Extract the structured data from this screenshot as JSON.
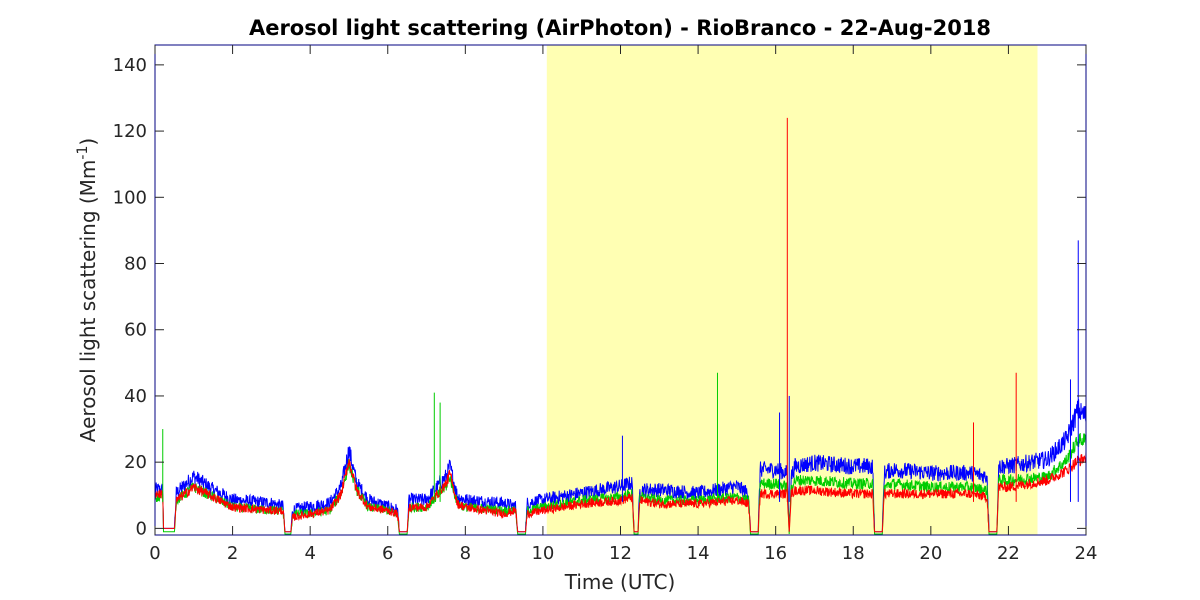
{
  "chart_data": {
    "type": "line",
    "title": "Aerosol light scattering (AirPhoton) - RioBranco - 22-Aug-2018",
    "xlabel": "Time (UTC)",
    "ylabel_main": "Aerosol light scattering (Mm",
    "ylabel_sup": "-1",
    "ylabel_close": ")",
    "xlim": [
      0,
      24
    ],
    "ylim": [
      -2,
      146
    ],
    "xticks": [
      "0",
      "2",
      "4",
      "6",
      "8",
      "10",
      "12",
      "14",
      "16",
      "18",
      "20",
      "22",
      "24"
    ],
    "yticks": [
      "0",
      "20",
      "40",
      "60",
      "80",
      "100",
      "120",
      "140"
    ],
    "grid": false,
    "daylight_shading": {
      "x_start": 10.1,
      "x_end": 22.75,
      "color": "#ffffb3"
    },
    "colors": {
      "blue": "#0000ff",
      "green": "#00cc00",
      "red": "#ff0000",
      "axis": "#262626",
      "frame": "#000080"
    },
    "series": [
      {
        "color_key": "blue",
        "x": [
          0,
          0.2,
          0.22,
          0.5,
          0.55,
          1.0,
          1.5,
          2.0,
          3.0,
          3.3,
          3.35,
          3.5,
          3.55,
          4.0,
          4.5,
          4.8,
          5.0,
          5.2,
          5.5,
          6.0,
          6.25,
          6.3,
          6.5,
          6.55,
          7.0,
          7.5,
          7.6,
          7.8,
          8.0,
          9.0,
          9.3,
          9.35,
          9.55,
          9.6,
          10.0,
          11.0,
          12.0,
          12.3,
          12.35,
          12.45,
          12.5,
          13.0,
          14.0,
          15.0,
          15.3,
          15.35,
          15.55,
          15.6,
          16.0,
          16.3,
          16.35,
          16.4,
          16.5,
          17.0,
          18.0,
          18.5,
          18.55,
          18.75,
          18.8,
          19.0,
          20.0,
          21.0,
          21.45,
          21.5,
          21.7,
          21.75,
          22.0,
          23.0,
          23.5,
          23.8,
          23.85,
          24.0
        ],
        "y": [
          11,
          11,
          0,
          0,
          10,
          15,
          11,
          8,
          7,
          6,
          -1,
          -1,
          5,
          6,
          7,
          12,
          23,
          13,
          8,
          6,
          5,
          -1,
          -1,
          8,
          8,
          15,
          18,
          9,
          8,
          7,
          6,
          -1,
          -1,
          7,
          8,
          10,
          12,
          13,
          -1,
          -1,
          11,
          11,
          10,
          12,
          10,
          -1,
          -1,
          17,
          17,
          16,
          -1,
          15,
          18,
          19,
          18,
          18,
          -1,
          -1,
          16,
          17,
          16,
          16,
          15,
          -1,
          -1,
          18,
          18,
          20,
          26,
          35,
          34,
          33
        ]
      },
      {
        "color_key": "green",
        "x": [
          0,
          0.2,
          0.22,
          0.5,
          0.55,
          1.0,
          1.5,
          2.0,
          3.0,
          3.3,
          3.35,
          3.5,
          3.55,
          4.0,
          4.5,
          4.8,
          5.0,
          5.2,
          5.5,
          6.0,
          6.25,
          6.3,
          6.5,
          6.55,
          7.0,
          7.5,
          7.6,
          7.8,
          8.0,
          9.0,
          9.3,
          9.35,
          9.55,
          9.6,
          10.0,
          11.0,
          12.0,
          12.3,
          12.35,
          12.45,
          12.5,
          13.0,
          14.0,
          15.0,
          15.3,
          15.35,
          15.55,
          15.6,
          16.0,
          16.3,
          16.35,
          16.4,
          16.5,
          17.0,
          18.0,
          18.5,
          18.55,
          18.75,
          18.8,
          19.0,
          20.0,
          21.0,
          21.45,
          21.5,
          21.7,
          21.75,
          22.0,
          23.0,
          23.5,
          23.8,
          23.85,
          24.0
        ],
        "y": [
          9,
          9,
          -1,
          -1,
          8,
          12,
          9,
          6,
          5,
          5,
          -2,
          -2,
          4,
          4,
          5,
          10,
          19,
          11,
          6,
          5,
          4,
          -2,
          -2,
          6,
          6,
          12,
          15,
          7,
          6,
          5,
          5,
          -2,
          -2,
          5,
          6,
          8,
          9,
          10,
          -2,
          -2,
          9,
          8,
          8,
          9,
          8,
          -2,
          -2,
          13,
          13,
          12,
          -2,
          12,
          14,
          14,
          13,
          13,
          -2,
          -2,
          12,
          13,
          12,
          12,
          11,
          -2,
          -2,
          14,
          14,
          15,
          20,
          26,
          26,
          26
        ]
      },
      {
        "color_key": "red",
        "x": [
          0,
          0.2,
          0.22,
          0.5,
          0.55,
          1.0,
          1.5,
          2.0,
          3.0,
          3.3,
          3.35,
          3.5,
          3.55,
          4.0,
          4.5,
          4.8,
          5.0,
          5.2,
          5.5,
          6.0,
          6.25,
          6.3,
          6.5,
          6.55,
          7.0,
          7.5,
          7.6,
          7.8,
          8.0,
          9.0,
          9.3,
          9.35,
          9.55,
          9.6,
          10.0,
          11.0,
          12.0,
          12.3,
          12.35,
          12.45,
          12.5,
          13.0,
          14.0,
          15.0,
          15.3,
          15.35,
          15.55,
          15.6,
          16.0,
          16.3,
          16.35,
          16.4,
          16.5,
          17.0,
          18.0,
          18.5,
          18.55,
          18.75,
          18.8,
          19.0,
          20.0,
          21.0,
          21.45,
          21.5,
          21.7,
          21.75,
          22.0,
          23.0,
          23.5,
          23.8,
          23.85,
          24.0
        ],
        "y": [
          10,
          10,
          0,
          0,
          8,
          12,
          9,
          6,
          5,
          5,
          -1,
          -1,
          3,
          4,
          5,
          10,
          20,
          11,
          6,
          5,
          4,
          -1,
          -1,
          6,
          6,
          13,
          16,
          7,
          6,
          4,
          5,
          -1,
          -1,
          4,
          5,
          7,
          8,
          9,
          -1,
          -1,
          8,
          7,
          7,
          8,
          7,
          -1,
          -1,
          10,
          10,
          10,
          -1,
          10,
          11,
          11,
          10,
          10,
          -1,
          -1,
          10,
          10,
          10,
          10,
          9,
          -1,
          -1,
          12,
          12,
          14,
          17,
          20,
          20,
          21
        ]
      }
    ],
    "spikes": [
      {
        "color_key": "green",
        "x": 0.2,
        "y": 30
      },
      {
        "color_key": "green",
        "x": 7.2,
        "y": 41
      },
      {
        "color_key": "green",
        "x": 7.35,
        "y": 38
      },
      {
        "color_key": "green",
        "x": 14.5,
        "y": 47
      },
      {
        "color_key": "blue",
        "x": 12.05,
        "y": 28
      },
      {
        "color_key": "blue",
        "x": 16.1,
        "y": 35
      },
      {
        "color_key": "red",
        "x": 16.3,
        "y": 124
      },
      {
        "color_key": "blue",
        "x": 16.35,
        "y": 40
      },
      {
        "color_key": "red",
        "x": 21.1,
        "y": 32
      },
      {
        "color_key": "red",
        "x": 22.2,
        "y": 47
      },
      {
        "color_key": "blue",
        "x": 23.8,
        "y": 87
      },
      {
        "color_key": "blue",
        "x": 23.6,
        "y": 45
      }
    ]
  }
}
